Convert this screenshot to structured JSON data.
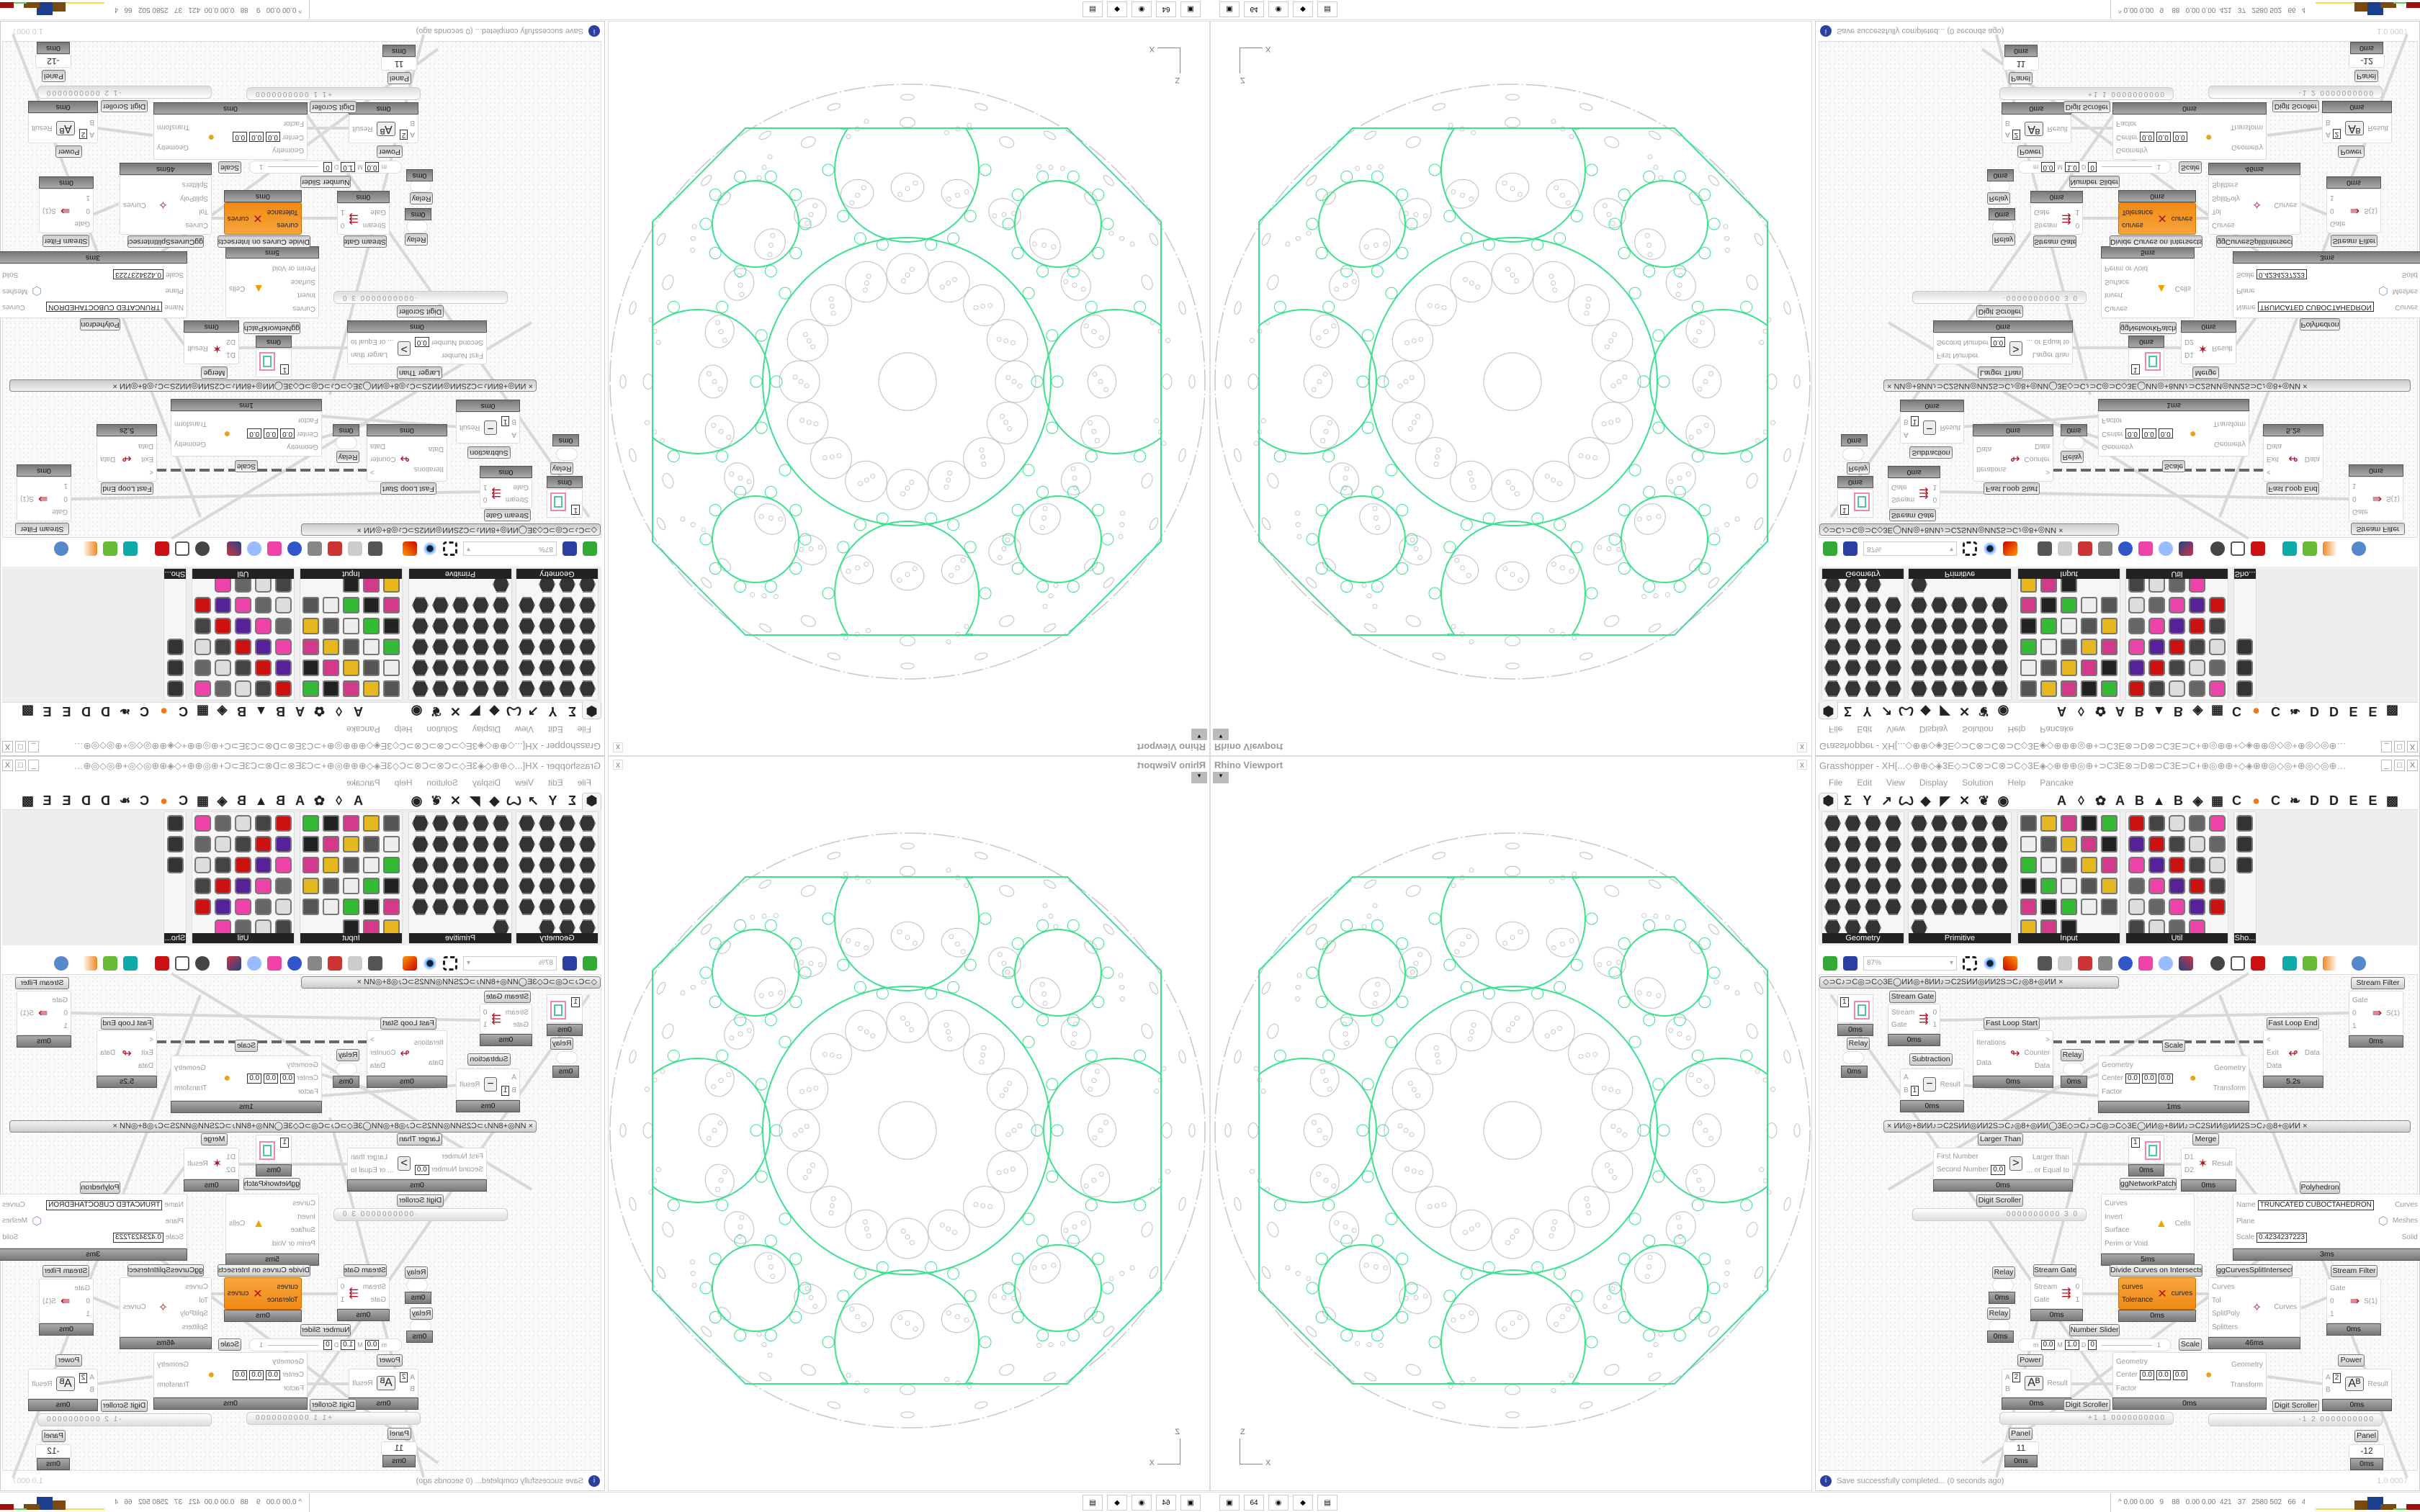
{
  "viewport": {
    "title": "Rhino Viewport",
    "close": "x",
    "menu_arrow": "▾",
    "axis_x": "X",
    "axis_z": "Z",
    "curve_color": "#3ee08f",
    "geometry_color": "#c8c8c8"
  },
  "taskbar": {
    "apps": [
      "grasshopper-icon",
      "rhino64-icon",
      "firefox-icon",
      "inkscape-icon",
      "calculator-icon"
    ],
    "app_glyphs": [
      "▣",
      "64",
      "◉",
      "◆",
      "▤"
    ],
    "stats": "0.00 0.00   9    88   0.00 0.00  421   37   2580 502   66   4.5   45   40  73341067",
    "expand": "^",
    "meter_colors": [
      "#f2e05a",
      "#f2e05a",
      "#f2e05a",
      "#7a4a10",
      "#1a3f8c",
      "#7a4a10",
      "#5ad25a",
      "#a01010"
    ],
    "meter_levels": [
      0.05,
      0.05,
      0.05,
      0.55,
      0.75,
      0.35,
      0.05,
      0.35
    ]
  },
  "grasshopper": {
    "title": "Grasshopper - XH[...◇⊕⊕◇◈3E◇⊃C⊗⊃C⊗⊃C◇3E◈◇⊕⊕⊕◎⊕+⊃C3E⊗⊃D⊗⊃C3E⊃C+⊕◎⊕⊕+◇◈⊕⊕◎◇◎+⊕◎◇◎⊕⊕◎⊕+⊃C3E⊗⊃D⊗⊃C...",
    "window_buttons": [
      "_",
      "□",
      "X"
    ],
    "menu": [
      "File",
      "Edit",
      "View",
      "Display",
      "Solution",
      "Help",
      "Pancake"
    ],
    "tabs": [
      "⬢",
      "Σ",
      "Y",
      "↗",
      "Ꙍ",
      "◆",
      "◤",
      "✕",
      "❦",
      "◉",
      "",
      "",
      "A",
      "◊",
      "✿",
      "A",
      "B",
      "▲",
      "B",
      "◈",
      "▦",
      "C",
      "●",
      "C",
      "❧",
      "D",
      "D",
      "E",
      "E",
      "▩"
    ],
    "panels": [
      {
        "label": "Geometry",
        "count": 23
      },
      {
        "label": "Primitive",
        "count": 26
      },
      {
        "label": "Input",
        "count": 28
      },
      {
        "label": "Util",
        "count": 29
      },
      {
        "label": "Sho...",
        "count": 3
      }
    ],
    "zoom": "87%",
    "status": "Save successfully completed... (0 seconds ago)",
    "status_icon": "i",
    "version": "1.0.0007"
  },
  "canvas": {
    "groups": [
      "◇⊃C♪⊃C◎⊃C◇3E◯ИИ◎+8ИИ♪⊃C2SИИ◎ИИ2S⊃C♪◎8+◎ИИ   ×",
      "×     ИИ◎+8ИИ♪⊃C2SИИ◎ИИ2S⊃C♪◎8+◎ИИ◯3E◇⊃C♪⊃C◎⊃C◇3E◯ИИ◎+8ИИ♪⊃C2SИИ◎ИИ2S⊃C♪◎8+◎ИИ     ×"
    ],
    "components": [
      {
        "title": "Stream Gate",
        "inputs": [
          "Stream",
          "Gate"
        ],
        "outputs": [
          "0",
          "1"
        ],
        "timing": "0ms",
        "icon": "⇶"
      },
      {
        "title": "Fast Loop Start",
        "inputs": [
          "Iterations",
          "Data"
        ],
        "outputs": [
          ">",
          "Counter",
          "Data"
        ],
        "timing": "0ms",
        "icon": "↬"
      },
      {
        "title": "Fast Loop End",
        "inputs": [
          "<",
          "Exit",
          "Data"
        ],
        "outputs": [
          "Data"
        ],
        "timing": "5.2s",
        "icon": "↫"
      },
      {
        "title": "Stream Filter",
        "inputs": [
          "Gate",
          "0",
          "1"
        ],
        "outputs": [
          "S(1)"
        ],
        "timing": "0ms",
        "icon": "⇛"
      },
      {
        "title": "Subtraction",
        "inputs": [
          "A",
          "B"
        ],
        "outputs": [
          "Result"
        ],
        "timing": "0ms",
        "icon": "−",
        "values": [
          "1"
        ]
      },
      {
        "title": "Scale",
        "inputs": [
          "Geometry",
          "Center",
          "Factor"
        ],
        "outputs": [
          "Geometry",
          "Transform"
        ],
        "timing": "1ms",
        "icon": "●",
        "values": [
          "0.0",
          "0.0",
          "0.0"
        ]
      },
      {
        "title": "Larger Than",
        "inputs": [
          "First Number",
          "Second Number"
        ],
        "outputs": [
          "Larger than",
          "... or Equal to"
        ],
        "timing": "0ms",
        "icon": ">",
        "values": [
          "0.0"
        ]
      },
      {
        "title": "Merge",
        "inputs": [
          "D1",
          "D2"
        ],
        "outputs": [
          "Result"
        ],
        "timing": "0ms",
        "icon": "✶"
      },
      {
        "title": "Polyhedron",
        "inputs": [
          "Name",
          "Plane",
          "Scale"
        ],
        "outputs": [
          "Curves",
          "Meshes",
          "Solid"
        ],
        "timing": "3ms",
        "icon": "⬡",
        "values": [
          "TRUNCATED CUBOCTAHEDRON",
          "0.4234237223"
        ]
      },
      {
        "title": "ggNetworkPatch",
        "inputs": [
          "Curves",
          "Invert",
          "Surface",
          "Perim or Void"
        ],
        "outputs": [
          "Cells"
        ],
        "timing": "5ms",
        "icon": "▲"
      },
      {
        "title": "Stream Gate",
        "inputs": [
          "Stream",
          "Gate"
        ],
        "outputs": [
          "0",
          "1"
        ],
        "timing": "0ms",
        "icon": "⇶"
      },
      {
        "title": "Divide Curves on Intersects",
        "inputs": [
          "curves",
          "Tolerance"
        ],
        "outputs": [
          "curves"
        ],
        "timing": "0ms",
        "icon": "✕"
      },
      {
        "title": "ggCurvesSplitIntersect",
        "inputs": [
          "Curves",
          "Tol",
          "SplitPoly",
          "Splitters"
        ],
        "outputs": [
          "Curves"
        ],
        "timing": "46ms",
        "icon": "✧"
      },
      {
        "title": "Stream Filter",
        "inputs": [
          "Gate",
          "0",
          "1"
        ],
        "outputs": [
          "S(1)"
        ],
        "timing": "0ms",
        "icon": "⇛"
      },
      {
        "title": "Scale",
        "inputs": [
          "Geometry",
          "Center",
          "Factor"
        ],
        "outputs": [
          "Geometry",
          "Transform"
        ],
        "timing": "0ms",
        "icon": "●",
        "values": [
          "0.0",
          "0.0",
          "0.0"
        ]
      },
      {
        "title": "Power",
        "inputs": [
          "A",
          "B"
        ],
        "outputs": [
          "Result"
        ],
        "timing": "0ms",
        "icon": "Aᴮ",
        "values": [
          "2"
        ]
      },
      {
        "title": "Power",
        "inputs": [
          "A",
          "B"
        ],
        "outputs": [
          "Result"
        ],
        "timing": "0ms",
        "icon": "Aᴮ",
        "values": [
          "2"
        ]
      }
    ],
    "relays": [
      {
        "title": "Relay",
        "timing": "0ms"
      },
      {
        "title": "Relay",
        "timing": "0ms"
      },
      {
        "title": "Relay",
        "timing": "0ms"
      },
      {
        "title": "Relay",
        "timing": "0ms"
      }
    ],
    "previews": [
      {
        "value": "1",
        "timing": "0ms"
      },
      {
        "value": "1",
        "timing": "0ms"
      }
    ],
    "panels": [
      {
        "title": "Panel",
        "value": "11",
        "timing": "0ms"
      },
      {
        "title": "Panel",
        "value": "-12",
        "timing": "0ms"
      }
    ],
    "scrollers": [
      {
        "title": "Digit Scroller",
        "value": "·0000000000 3 0"
      },
      {
        "title": "Digit Scroller",
        "value": "+1 1 0000000000"
      },
      {
        "title": "Digit Scroller",
        "value": "-1 2 0000000000"
      }
    ],
    "slider": {
      "title": "Number Slider",
      "min_label": "m",
      "min": "0.0",
      "max_label": "M",
      "max": "1.0",
      "dec_label": "D",
      "decimals": "0",
      "value": "1"
    }
  }
}
